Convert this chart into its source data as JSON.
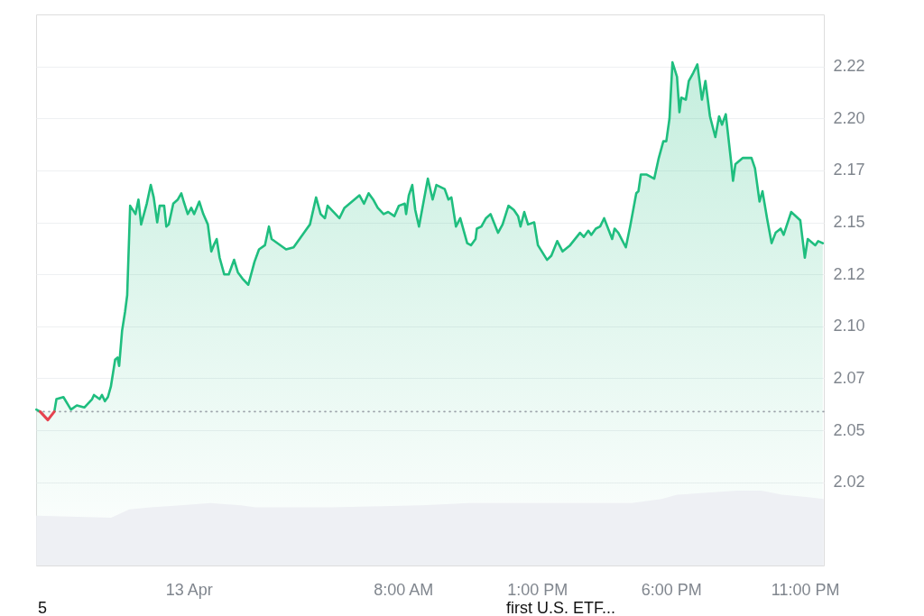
{
  "chart_data": {
    "type": "area",
    "xlim": [
      -5.7,
      23.7
    ],
    "xticks": [
      {
        "value": 0,
        "label": "13 Apr"
      },
      {
        "value": 8,
        "label": "8:00 AM"
      },
      {
        "value": 13,
        "label": "1:00 PM"
      },
      {
        "value": 18,
        "label": "6:00 PM"
      },
      {
        "value": 23,
        "label": "11:00 PM"
      }
    ],
    "ylim": [
      1.985,
      2.25
    ],
    "yticks": [
      {
        "value": 2.025,
        "label": "2.02"
      },
      {
        "value": 2.05,
        "label": "2.05"
      },
      {
        "value": 2.075,
        "label": "2.07"
      },
      {
        "value": 2.1,
        "label": "2.10"
      },
      {
        "value": 2.125,
        "label": "2.12"
      },
      {
        "value": 2.15,
        "label": "2.15"
      },
      {
        "value": 2.175,
        "label": "2.17"
      },
      {
        "value": 2.2,
        "label": "2.20"
      },
      {
        "value": 2.225,
        "label": "2.22"
      }
    ],
    "grid": "y",
    "ref_lines": [
      {
        "axis": "y",
        "value": 2.059,
        "line_style": "dotted",
        "color": "#9aa0a8"
      }
    ],
    "annotations": [
      "5",
      "first U.S. ETF..."
    ],
    "series": [
      {
        "color": "#1fbe7f",
        "line_style": "solid",
        "x": [
          -5.69,
          -5.55,
          -5.26,
          -5.02,
          -4.94,
          -4.68,
          -4.4,
          -4.18,
          -3.9,
          -3.61,
          -3.54,
          -3.33,
          -3.24,
          -3.13,
          -3.02,
          -2.91,
          -2.75,
          -2.66,
          -2.6,
          -2.49,
          -2.38,
          -2.3,
          -2.19,
          -1.99,
          -1.88,
          -1.78,
          -1.57,
          -1.42,
          -1.31,
          -1.18,
          -1.09,
          -0.92,
          -0.84,
          -0.75,
          -0.58,
          -0.41,
          -0.28,
          -0.19,
          -0.04,
          0.09,
          0.2,
          0.39,
          0.54,
          0.71,
          0.84,
          0.93,
          1.04,
          1.15,
          1.32,
          1.49,
          1.69,
          1.83,
          2.0,
          2.22,
          2.45,
          2.62,
          2.84,
          2.99,
          3.09,
          3.63,
          3.91,
          4.24,
          4.52,
          4.75,
          4.92,
          5.08,
          5.18,
          5.62,
          5.81,
          6.09,
          6.37,
          6.54,
          6.71,
          6.88,
          7.05,
          7.27,
          7.44,
          7.67,
          7.84,
          8.06,
          8.11,
          8.21,
          8.34,
          8.45,
          8.59,
          8.79,
          8.92,
          9.1,
          9.24,
          9.55,
          9.69,
          9.8,
          9.97,
          10.13,
          10.39,
          10.53,
          10.7,
          10.75,
          10.92,
          11.09,
          11.26,
          11.54,
          11.71,
          11.93,
          12.13,
          12.29,
          12.38,
          12.52,
          12.66,
          12.89,
          13.03,
          13.37,
          13.53,
          13.75,
          13.95,
          14.23,
          14.6,
          14.74,
          14.91,
          15.02,
          15.19,
          15.35,
          15.5,
          15.8,
          15.89,
          16.03,
          16.31,
          16.47,
          16.7,
          16.78,
          16.87,
          17.09,
          17.37,
          17.54,
          17.71,
          17.82,
          17.94,
          18.05,
          18.22,
          18.31,
          18.38,
          18.55,
          18.66,
          18.83,
          18.98,
          19.15,
          19.28,
          19.45,
          19.65,
          19.79,
          19.9,
          20.04,
          20.24,
          20.31,
          20.4,
          20.68,
          21.0,
          21.13,
          21.3,
          21.41,
          21.58,
          21.75,
          21.9,
          22.09,
          22.2,
          22.48,
          22.82,
          22.99,
          23.1,
          23.38,
          23.49,
          23.66
        ],
        "values": [
          2.06,
          2.059,
          null,
          2.059,
          2.065,
          2.066,
          2.06,
          2.062,
          2.061,
          2.065,
          2.067,
          2.065,
          2.067,
          2.064,
          2.066,
          2.071,
          2.084,
          2.085,
          2.081,
          2.098,
          2.107,
          2.115,
          2.158,
          2.154,
          2.161,
          2.149,
          2.159,
          2.168,
          2.162,
          2.15,
          2.158,
          2.158,
          2.148,
          2.149,
          2.159,
          2.161,
          2.164,
          2.16,
          2.154,
          2.157,
          2.154,
          2.16,
          2.154,
          2.149,
          2.136,
          2.139,
          2.142,
          2.133,
          2.125,
          2.125,
          2.132,
          2.126,
          2.123,
          2.12,
          2.131,
          2.137,
          2.139,
          2.148,
          2.142,
          2.137,
          2.138,
          2.144,
          2.149,
          2.162,
          2.154,
          2.152,
          2.158,
          2.152,
          2.157,
          2.16,
          2.163,
          2.159,
          2.164,
          2.161,
          2.157,
          2.154,
          2.155,
          2.153,
          2.158,
          2.159,
          2.154,
          2.163,
          2.168,
          2.156,
          2.148,
          2.162,
          2.171,
          2.161,
          2.168,
          2.166,
          2.161,
          2.162,
          2.148,
          2.152,
          2.14,
          2.139,
          2.142,
          2.147,
          2.148,
          2.152,
          2.154,
          2.145,
          2.149,
          2.158,
          2.156,
          2.153,
          2.148,
          2.155,
          2.149,
          2.15,
          2.139,
          2.132,
          2.134,
          2.141,
          2.136,
          2.139,
          2.145,
          2.143,
          2.146,
          2.144,
          2.147,
          2.148,
          2.152,
          2.142,
          2.147,
          2.145,
          2.138,
          2.148,
          2.164,
          2.165,
          2.173,
          2.173,
          2.171,
          2.181,
          2.189,
          2.189,
          2.2,
          2.227,
          2.22,
          2.203,
          2.21,
          2.209,
          2.218,
          2.222,
          2.226,
          2.209,
          2.218,
          2.201,
          2.191,
          2.201,
          2.197,
          2.202,
          2.179,
          2.17,
          2.178,
          2.181,
          2.181,
          2.176,
          2.16,
          2.165,
          2.152,
          2.14,
          2.145,
          2.147,
          2.144,
          2.155,
          2.151,
          2.133,
          2.142,
          2.139,
          2.141,
          2.14
        ]
      },
      {
        "type": "area",
        "color": "#eef0f4",
        "x": [
          -5.69,
          -2.9,
          -2.22,
          -1.42,
          -0.3,
          0.81,
          1.94,
          2.49,
          5.31,
          8.68,
          10.47,
          13.16,
          16.53,
          17.65,
          18.22,
          19.34,
          20.46,
          21.36,
          22.14,
          23.04,
          23.69
        ],
        "values": [
          2.009,
          2.008,
          2.012,
          2.013,
          2.014,
          2.015,
          2.014,
          2.013,
          2.013,
          2.014,
          2.015,
          2.015,
          2.015,
          2.017,
          2.019,
          2.02,
          2.021,
          2.021,
          2.019,
          2.018,
          2.017
        ]
      },
      {
        "type": "line",
        "color": "#e6424f",
        "x": [
          -5.55,
          -5.26,
          -5.02
        ],
        "values": [
          2.059,
          2.055,
          2.059
        ]
      }
    ]
  }
}
